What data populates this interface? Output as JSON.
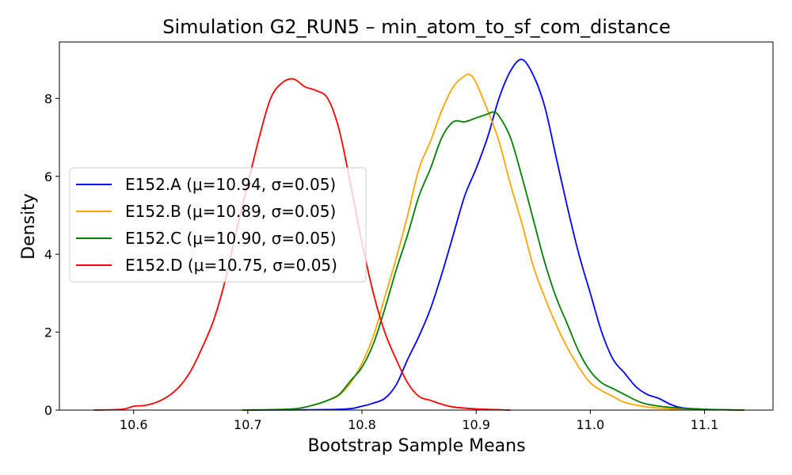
{
  "chart_data": {
    "type": "line",
    "title": "Simulation G2_RUN5 – min_atom_to_sf_com_distance",
    "xlabel": "Bootstrap Sample Means",
    "ylabel": "Density",
    "xlim": [
      10.535,
      11.16
    ],
    "ylim": [
      0,
      9.45
    ],
    "xticks": [
      10.6,
      10.7,
      10.8,
      10.9,
      11.0,
      11.1
    ],
    "xtick_labels": [
      "10.6",
      "10.7",
      "10.8",
      "10.9",
      "11.0",
      "11.1"
    ],
    "yticks": [
      0,
      2,
      4,
      6,
      8
    ],
    "ytick_labels": [
      "0",
      "2",
      "4",
      "6",
      "8"
    ],
    "grid": false,
    "legend_position": "center-left",
    "series": [
      {
        "name": "E152.A (μ=10.94, σ=0.05)",
        "color": "#0000ff",
        "x": [
          10.7,
          10.78,
          10.8,
          10.81,
          10.82,
          10.83,
          10.84,
          10.85,
          10.86,
          10.87,
          10.88,
          10.89,
          10.9,
          10.91,
          10.92,
          10.93,
          10.94,
          10.95,
          10.96,
          10.97,
          10.98,
          10.99,
          11.0,
          11.01,
          11.02,
          11.03,
          11.04,
          11.05,
          11.06,
          11.07,
          11.08,
          11.1,
          11.135
        ],
        "y": [
          0.0,
          0.02,
          0.1,
          0.18,
          0.3,
          0.65,
          1.3,
          1.9,
          2.6,
          3.5,
          4.5,
          5.5,
          6.2,
          7.0,
          8.0,
          8.7,
          9.0,
          8.6,
          7.8,
          6.5,
          5.2,
          4.0,
          3.0,
          2.0,
          1.3,
          0.95,
          0.6,
          0.4,
          0.3,
          0.15,
          0.06,
          0.02,
          0.0
        ]
      },
      {
        "name": "E152.B (μ=10.89, σ=0.05)",
        "color": "#ffa500",
        "x": [
          10.695,
          10.74,
          10.76,
          10.77,
          10.78,
          10.79,
          10.8,
          10.81,
          10.82,
          10.83,
          10.84,
          10.85,
          10.86,
          10.87,
          10.88,
          10.89,
          10.895,
          10.9,
          10.91,
          10.92,
          10.93,
          10.94,
          10.95,
          10.96,
          10.97,
          10.98,
          10.99,
          11.0,
          11.01,
          11.02,
          11.03,
          11.05,
          11.08,
          11.135
        ],
        "y": [
          0.0,
          0.03,
          0.15,
          0.25,
          0.38,
          0.7,
          1.2,
          1.9,
          2.9,
          3.9,
          5.0,
          6.2,
          6.9,
          7.7,
          8.3,
          8.58,
          8.6,
          8.4,
          7.7,
          6.9,
          5.8,
          4.8,
          3.7,
          2.9,
          2.2,
          1.6,
          1.1,
          0.7,
          0.5,
          0.35,
          0.2,
          0.08,
          0.02,
          0.0
        ]
      },
      {
        "name": "E152.C (μ=10.90, σ=0.05)",
        "color": "#008000",
        "x": [
          10.695,
          10.74,
          10.76,
          10.77,
          10.78,
          10.79,
          10.8,
          10.81,
          10.82,
          10.83,
          10.84,
          10.85,
          10.86,
          10.87,
          10.88,
          10.89,
          10.9,
          10.91,
          10.915,
          10.92,
          10.93,
          10.94,
          10.95,
          10.96,
          10.97,
          10.98,
          10.99,
          11.0,
          11.01,
          11.02,
          11.03,
          11.04,
          11.05,
          11.07,
          11.1,
          11.135
        ],
        "y": [
          0.0,
          0.03,
          0.15,
          0.25,
          0.4,
          0.75,
          1.1,
          1.7,
          2.6,
          3.6,
          4.5,
          5.5,
          6.2,
          7.0,
          7.4,
          7.4,
          7.5,
          7.6,
          7.65,
          7.55,
          7.0,
          6.0,
          4.9,
          3.8,
          2.9,
          2.2,
          1.5,
          1.0,
          0.7,
          0.55,
          0.4,
          0.25,
          0.15,
          0.07,
          0.02,
          0.0
        ]
      },
      {
        "name": "E152.D (μ=10.75, σ=0.05)",
        "color": "#ff0000",
        "x": [
          10.565,
          10.59,
          10.6,
          10.61,
          10.62,
          10.63,
          10.64,
          10.65,
          10.66,
          10.67,
          10.68,
          10.69,
          10.7,
          10.71,
          10.72,
          10.73,
          10.74,
          10.75,
          10.76,
          10.77,
          10.78,
          10.79,
          10.8,
          10.81,
          10.82,
          10.83,
          10.84,
          10.85,
          10.86,
          10.87,
          10.88,
          10.9,
          10.93
        ],
        "y": [
          0.0,
          0.02,
          0.1,
          0.12,
          0.2,
          0.35,
          0.6,
          1.0,
          1.6,
          2.3,
          3.3,
          4.6,
          5.8,
          7.0,
          8.0,
          8.4,
          8.5,
          8.3,
          8.2,
          8.0,
          7.2,
          5.8,
          4.3,
          3.0,
          2.0,
          1.3,
          0.7,
          0.35,
          0.25,
          0.15,
          0.08,
          0.03,
          0.0
        ]
      }
    ]
  }
}
